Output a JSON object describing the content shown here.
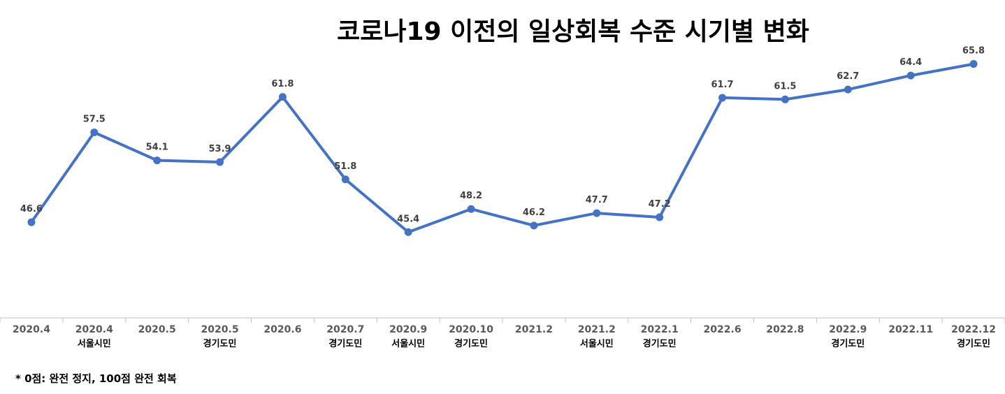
{
  "chart_data": {
    "type": "line",
    "title": "코로나19 이전의 일상회복 수준 시기별 변화",
    "categories": [
      {
        "date": "2020.4",
        "sub": ""
      },
      {
        "date": "2020.4",
        "sub": "서울시민"
      },
      {
        "date": "2020.5",
        "sub": ""
      },
      {
        "date": "2020.5",
        "sub": "경기도민"
      },
      {
        "date": "2020.6",
        "sub": ""
      },
      {
        "date": "2020.7",
        "sub": "경기도민"
      },
      {
        "date": "2020.9",
        "sub": "서울시민"
      },
      {
        "date": "2020.10",
        "sub": "경기도민"
      },
      {
        "date": "2021.2",
        "sub": ""
      },
      {
        "date": "2021.2",
        "sub": "서울시민"
      },
      {
        "date": "2022.1",
        "sub": "경기도민"
      },
      {
        "date": "2022.6",
        "sub": ""
      },
      {
        "date": "2022.8",
        "sub": ""
      },
      {
        "date": "2022.9",
        "sub": "경기도민"
      },
      {
        "date": "2022.11",
        "sub": ""
      },
      {
        "date": "2022.12",
        "sub": "경기도민"
      }
    ],
    "values": [
      46.6,
      57.5,
      54.1,
      53.9,
      61.8,
      51.8,
      45.4,
      48.2,
      46.2,
      47.7,
      47.2,
      61.7,
      61.5,
      62.7,
      64.4,
      65.8
    ],
    "value_labels": [
      "46.6",
      "57.5",
      "54.1",
      "53.9",
      "61.8",
      "51.8",
      "45.4",
      "48.2",
      "46.2",
      "47.7",
      "47.2",
      "61.7",
      "61.5",
      "62.7",
      "64.4",
      "65.8"
    ],
    "ylim": [
      35,
      70
    ],
    "grid": false,
    "legend": "none",
    "line_color": "#4472C4",
    "axis_color": "#BFBFBF"
  },
  "footnote": "* 0점: 완전 정지, 100점 완전 회복"
}
